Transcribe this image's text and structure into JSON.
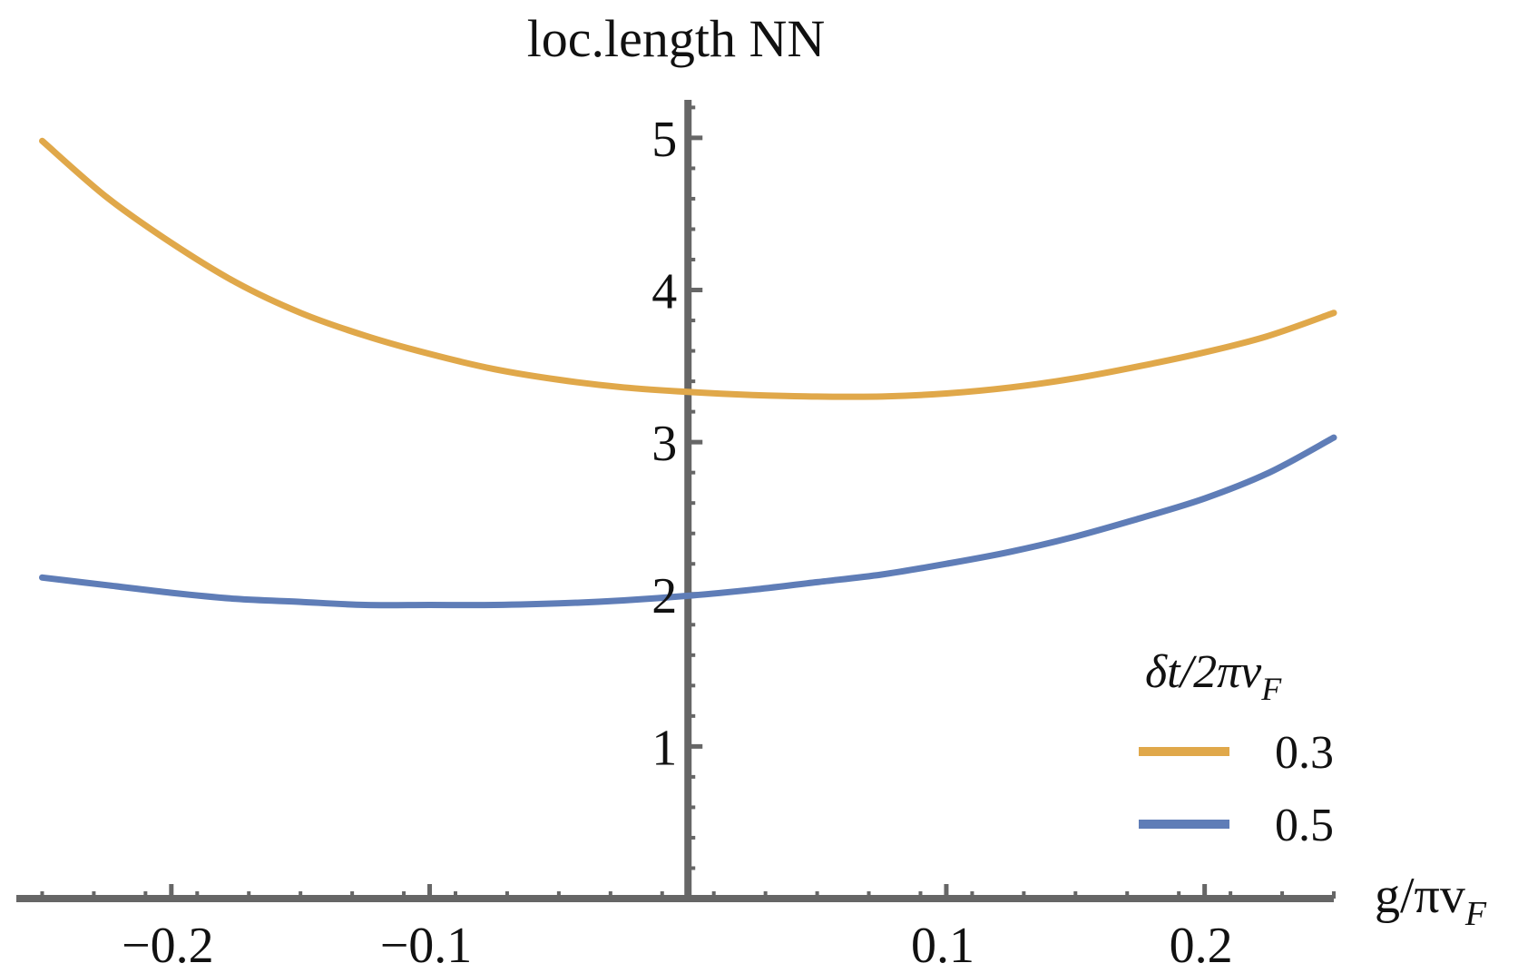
{
  "chart_data": {
    "type": "line",
    "title": "loc.length NN",
    "xlabel": "g/πv",
    "xlabel_sub": "F",
    "ylabel": "",
    "xlim": [
      -0.26,
      0.25
    ],
    "ylim": [
      0,
      5.25
    ],
    "x_ticks": [
      {
        "value": -0.2,
        "label": "−0.2"
      },
      {
        "value": -0.1,
        "label": "−0.1"
      },
      {
        "value": 0.1,
        "label": "0.1"
      },
      {
        "value": 0.2,
        "label": "0.2"
      }
    ],
    "y_ticks": [
      {
        "value": 1,
        "label": "1"
      },
      {
        "value": 2,
        "label": "2"
      },
      {
        "value": 3,
        "label": "3"
      },
      {
        "value": 4,
        "label": "4"
      },
      {
        "value": 5,
        "label": "5"
      }
    ],
    "grid": false,
    "legend": {
      "placement": "bottom-right",
      "title": "δt/2πv",
      "title_sub": "F"
    },
    "series": [
      {
        "name": "0.3",
        "color": "#e0a84a",
        "x": [
          -0.25,
          -0.225,
          -0.2,
          -0.175,
          -0.15,
          -0.125,
          -0.1,
          -0.075,
          -0.05,
          -0.025,
          0.0,
          0.025,
          0.05,
          0.075,
          0.1,
          0.125,
          0.15,
          0.175,
          0.2,
          0.225,
          0.25
        ],
        "y": [
          4.98,
          4.61,
          4.31,
          4.05,
          3.85,
          3.7,
          3.58,
          3.48,
          3.41,
          3.36,
          3.33,
          3.31,
          3.3,
          3.3,
          3.32,
          3.36,
          3.42,
          3.5,
          3.59,
          3.7,
          3.85
        ]
      },
      {
        "name": "0.5",
        "color": "#5f7db7",
        "x": [
          -0.25,
          -0.225,
          -0.2,
          -0.175,
          -0.15,
          -0.125,
          -0.1,
          -0.075,
          -0.05,
          -0.025,
          0.0,
          0.025,
          0.05,
          0.075,
          0.1,
          0.125,
          0.15,
          0.175,
          0.2,
          0.225,
          0.25
        ],
        "y": [
          2.11,
          2.06,
          2.01,
          1.97,
          1.95,
          1.93,
          1.93,
          1.93,
          1.94,
          1.96,
          1.99,
          2.03,
          2.08,
          2.13,
          2.2,
          2.28,
          2.38,
          2.5,
          2.63,
          2.8,
          3.03
        ]
      }
    ]
  }
}
